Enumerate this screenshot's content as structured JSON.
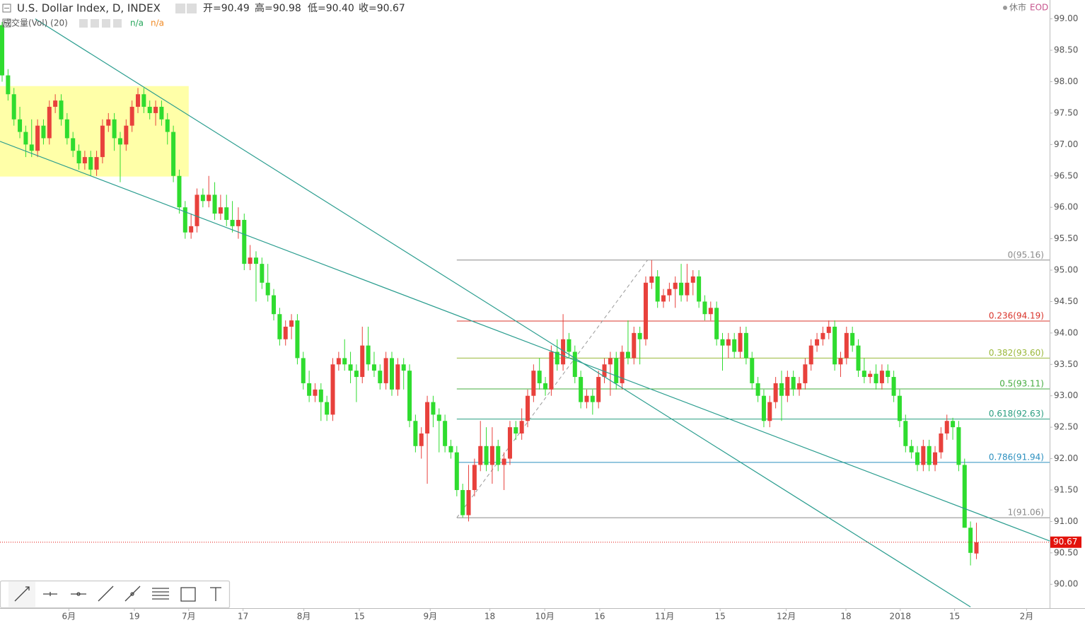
{
  "chart_data": {
    "type": "candlestick",
    "title": "U.S. Dollar Index, D, INDEX",
    "ohlc_texts": [
      "开=90.49",
      "高=90.98",
      "低=90.40",
      "收=90.67"
    ],
    "indicator": "成交量(Vol) (20)",
    "indicator_values": [
      {
        "label": "n/a",
        "color": "#26a65b"
      },
      {
        "label": "n/a",
        "color": "#f08a24"
      }
    ],
    "status": "休市",
    "feed": "EOD",
    "up_color": "#e8413c",
    "down_color": "#2fdc2f",
    "xlim": [
      -0.36,
      177.4
    ],
    "ylim": [
      89.62,
      99.3
    ],
    "yticks": [
      {
        "value": 90,
        "label": "90.00"
      },
      {
        "value": 90.5,
        "label": "90.50"
      },
      {
        "value": 91,
        "label": "91.00"
      },
      {
        "value": 91.5,
        "label": "91.50"
      },
      {
        "value": 92,
        "label": "92.00"
      },
      {
        "value": 92.5,
        "label": "92.50"
      },
      {
        "value": 93,
        "label": "93.00"
      },
      {
        "value": 93.5,
        "label": "93.50"
      },
      {
        "value": 94,
        "label": "94.00"
      },
      {
        "value": 94.5,
        "label": "94.50"
      },
      {
        "value": 95,
        "label": "95.00"
      },
      {
        "value": 95.5,
        "label": "95.50"
      },
      {
        "value": 96,
        "label": "96.00"
      },
      {
        "value": 96.5,
        "label": "96.50"
      },
      {
        "value": 97,
        "label": "97.00"
      },
      {
        "value": 97.5,
        "label": "97.50"
      },
      {
        "value": 98,
        "label": "98.00"
      },
      {
        "value": 98.5,
        "label": "98.50"
      },
      {
        "value": 99,
        "label": "99.00"
      }
    ],
    "xticks": [
      {
        "value": 11.3,
        "label": "6月"
      },
      {
        "value": 22.4,
        "label": "19"
      },
      {
        "value": 31.6,
        "label": "7月"
      },
      {
        "value": 40.8,
        "label": "17"
      },
      {
        "value": 51.1,
        "label": "8月"
      },
      {
        "value": 60.5,
        "label": "15"
      },
      {
        "value": 72.5,
        "label": "9月"
      },
      {
        "value": 82.6,
        "label": "18"
      },
      {
        "value": 91.9,
        "label": "10月"
      },
      {
        "value": 101.2,
        "label": "16"
      },
      {
        "value": 112.2,
        "label": "11月"
      },
      {
        "value": 121.6,
        "label": "15"
      },
      {
        "value": 132.8,
        "label": "12月"
      },
      {
        "value": 142.9,
        "label": "18"
      },
      {
        "value": 152.1,
        "label": "2018"
      },
      {
        "value": 161.3,
        "label": "15"
      },
      {
        "value": 173.5,
        "label": "2月"
      }
    ],
    "candles": [
      [
        98.9,
        98.95,
        98.0,
        98.1
      ],
      [
        98.1,
        98.2,
        97.7,
        97.8
      ],
      [
        97.8,
        97.9,
        97.3,
        97.4
      ],
      [
        97.4,
        97.6,
        97.1,
        97.2
      ],
      [
        97.2,
        97.3,
        96.8,
        97.0
      ],
      [
        97.0,
        97.4,
        96.8,
        96.9
      ],
      [
        96.9,
        97.4,
        96.8,
        97.3
      ],
      [
        97.3,
        97.4,
        97.0,
        97.1
      ],
      [
        97.1,
        97.7,
        97.0,
        97.6
      ],
      [
        97.6,
        97.8,
        97.5,
        97.7
      ],
      [
        97.7,
        97.8,
        97.3,
        97.4
      ],
      [
        97.4,
        97.5,
        97.0,
        97.1
      ],
      [
        97.1,
        97.2,
        96.8,
        96.9
      ],
      [
        96.9,
        97.0,
        96.6,
        96.7
      ],
      [
        96.7,
        96.9,
        96.6,
        96.8
      ],
      [
        96.8,
        96.9,
        96.5,
        96.6
      ],
      [
        96.6,
        96.9,
        96.5,
        96.8
      ],
      [
        96.8,
        97.4,
        96.7,
        97.3
      ],
      [
        97.3,
        97.5,
        97.2,
        97.4
      ],
      [
        97.4,
        97.5,
        96.9,
        97.1
      ],
      [
        97.1,
        97.2,
        96.4,
        97.0
      ],
      [
        97.0,
        97.4,
        96.9,
        97.3
      ],
      [
        97.3,
        97.7,
        97.2,
        97.6
      ],
      [
        97.6,
        97.9,
        97.5,
        97.8
      ],
      [
        97.8,
        97.9,
        97.5,
        97.6
      ],
      [
        97.6,
        97.7,
        97.4,
        97.5
      ],
      [
        97.5,
        97.7,
        97.3,
        97.6
      ],
      [
        97.6,
        97.7,
        97.3,
        97.4
      ],
      [
        97.4,
        97.5,
        97.0,
        97.2
      ],
      [
        97.2,
        97.3,
        96.4,
        96.5
      ],
      [
        96.5,
        96.6,
        95.9,
        96.0
      ],
      [
        96.0,
        96.1,
        95.5,
        95.6
      ],
      [
        95.6,
        95.9,
        95.5,
        95.7
      ],
      [
        95.7,
        96.3,
        95.6,
        96.2
      ],
      [
        96.2,
        96.3,
        96.0,
        96.1
      ],
      [
        96.1,
        96.5,
        96.0,
        96.2
      ],
      [
        96.2,
        96.4,
        95.8,
        95.9
      ],
      [
        95.9,
        96.2,
        95.8,
        96.0
      ],
      [
        96.0,
        96.2,
        95.7,
        95.8
      ],
      [
        95.8,
        96.1,
        95.6,
        95.7
      ],
      [
        95.7,
        96.0,
        95.5,
        95.8
      ],
      [
        95.8,
        95.9,
        95.0,
        95.1
      ],
      [
        95.1,
        95.4,
        95.0,
        95.2
      ],
      [
        95.2,
        95.3,
        94.5,
        95.1
      ],
      [
        95.1,
        95.2,
        94.7,
        94.8
      ],
      [
        94.8,
        95.1,
        94.5,
        94.6
      ],
      [
        94.6,
        94.7,
        94.2,
        94.3
      ],
      [
        94.3,
        94.4,
        93.8,
        93.9
      ],
      [
        93.9,
        94.2,
        93.8,
        94.1
      ],
      [
        94.1,
        94.3,
        93.9,
        94.2
      ],
      [
        94.2,
        94.3,
        93.5,
        93.6
      ],
      [
        93.6,
        93.7,
        93.1,
        93.2
      ],
      [
        93.2,
        93.4,
        92.9,
        93.0
      ],
      [
        93.0,
        93.2,
        92.9,
        93.1
      ],
      [
        93.1,
        93.2,
        92.6,
        92.9
      ],
      [
        92.9,
        93.0,
        92.6,
        92.7
      ],
      [
        92.7,
        93.6,
        92.6,
        93.5
      ],
      [
        93.5,
        93.7,
        93.4,
        93.6
      ],
      [
        93.6,
        93.9,
        93.4,
        93.5
      ],
      [
        93.5,
        93.7,
        93.2,
        93.4
      ],
      [
        93.4,
        93.5,
        92.9,
        93.3
      ],
      [
        93.3,
        94.1,
        93.2,
        93.8
      ],
      [
        93.8,
        94.1,
        93.4,
        93.5
      ],
      [
        93.5,
        93.7,
        93.3,
        93.4
      ],
      [
        93.4,
        93.5,
        93.1,
        93.2
      ],
      [
        93.2,
        93.7,
        93.1,
        93.6
      ],
      [
        93.6,
        93.7,
        93.0,
        93.1
      ],
      [
        93.1,
        93.6,
        93.0,
        93.5
      ],
      [
        93.5,
        93.6,
        93.1,
        93.4
      ],
      [
        93.4,
        93.5,
        92.5,
        92.6
      ],
      [
        92.6,
        92.7,
        92.1,
        92.2
      ],
      [
        92.2,
        92.5,
        92.0,
        92.4
      ],
      [
        92.4,
        93.0,
        91.6,
        92.9
      ],
      [
        92.9,
        93.0,
        92.5,
        92.7
      ],
      [
        92.7,
        92.8,
        92.1,
        92.6
      ],
      [
        92.6,
        92.7,
        92.1,
        92.2
      ],
      [
        92.2,
        92.3,
        92.0,
        92.1
      ],
      [
        92.1,
        92.2,
        91.4,
        91.5
      ],
      [
        91.5,
        91.6,
        91.06,
        91.1
      ],
      [
        91.1,
        91.9,
        91.0,
        91.5
      ],
      [
        91.5,
        92.0,
        91.4,
        91.9
      ],
      [
        91.9,
        92.6,
        91.8,
        92.2
      ],
      [
        92.2,
        92.5,
        91.8,
        91.9
      ],
      [
        91.9,
        92.5,
        91.6,
        92.2
      ],
      [
        92.2,
        92.3,
        91.8,
        91.9
      ],
      [
        91.9,
        92.1,
        91.5,
        92.0
      ],
      [
        92.0,
        92.6,
        91.9,
        92.5
      ],
      [
        92.5,
        92.6,
        92.3,
        92.4
      ],
      [
        92.4,
        92.8,
        92.3,
        92.6
      ],
      [
        92.6,
        93.1,
        92.5,
        93.0
      ],
      [
        93.0,
        93.5,
        92.9,
        93.4
      ],
      [
        93.4,
        93.6,
        93.1,
        93.2
      ],
      [
        93.2,
        93.3,
        93.0,
        93.1
      ],
      [
        93.1,
        93.8,
        93.0,
        93.7
      ],
      [
        93.7,
        93.9,
        93.4,
        93.5
      ],
      [
        93.5,
        94.3,
        93.4,
        93.9
      ],
      [
        93.9,
        94.0,
        93.6,
        93.7
      ],
      [
        93.7,
        93.8,
        93.2,
        93.3
      ],
      [
        93.3,
        93.4,
        92.8,
        92.9
      ],
      [
        92.9,
        93.1,
        92.8,
        93.0
      ],
      [
        93.0,
        93.1,
        92.7,
        92.9
      ],
      [
        92.9,
        93.4,
        92.8,
        93.3
      ],
      [
        93.3,
        93.6,
        93.2,
        93.5
      ],
      [
        93.5,
        93.7,
        93.0,
        93.6
      ],
      [
        93.6,
        93.7,
        93.1,
        93.2
      ],
      [
        93.2,
        93.8,
        93.1,
        93.7
      ],
      [
        93.7,
        94.2,
        93.5,
        93.6
      ],
      [
        93.6,
        94.1,
        93.5,
        94.0
      ],
      [
        94.0,
        94.1,
        93.5,
        93.9
      ],
      [
        93.9,
        94.9,
        93.8,
        94.8
      ],
      [
        94.8,
        95.16,
        94.7,
        94.9
      ],
      [
        94.9,
        95.0,
        94.4,
        94.5
      ],
      [
        94.5,
        94.7,
        94.4,
        94.6
      ],
      [
        94.6,
        94.8,
        94.5,
        94.7
      ],
      [
        94.7,
        94.9,
        94.4,
        94.8
      ],
      [
        94.8,
        95.1,
        94.5,
        94.6
      ],
      [
        94.6,
        95.1,
        94.5,
        94.8
      ],
      [
        94.8,
        95.0,
        94.6,
        94.9
      ],
      [
        94.9,
        95.0,
        94.4,
        94.5
      ],
      [
        94.5,
        94.6,
        94.2,
        94.3
      ],
      [
        94.3,
        94.5,
        94.2,
        94.4
      ],
      [
        94.4,
        94.5,
        93.8,
        93.9
      ],
      [
        93.9,
        94.0,
        93.4,
        93.8
      ],
      [
        93.8,
        94.0,
        93.6,
        93.9
      ],
      [
        93.9,
        94.0,
        93.6,
        93.7
      ],
      [
        93.7,
        94.1,
        93.6,
        94.0
      ],
      [
        94.0,
        94.1,
        93.5,
        93.6
      ],
      [
        93.6,
        93.7,
        93.1,
        93.2
      ],
      [
        93.2,
        93.3,
        92.9,
        93.0
      ],
      [
        93.0,
        93.1,
        92.5,
        92.6
      ],
      [
        92.6,
        93.0,
        92.5,
        92.9
      ],
      [
        92.9,
        93.3,
        92.8,
        93.2
      ],
      [
        93.2,
        93.4,
        92.6,
        93.0
      ],
      [
        93.0,
        93.4,
        92.9,
        93.3
      ],
      [
        93.3,
        93.4,
        93.0,
        93.1
      ],
      [
        93.1,
        93.3,
        93.0,
        93.2
      ],
      [
        93.2,
        93.6,
        93.1,
        93.5
      ],
      [
        93.5,
        93.9,
        93.4,
        93.8
      ],
      [
        93.8,
        94.0,
        93.7,
        93.9
      ],
      [
        93.9,
        94.1,
        93.8,
        94.0
      ],
      [
        94.0,
        94.2,
        93.9,
        94.1
      ],
      [
        94.1,
        94.2,
        93.4,
        93.5
      ],
      [
        93.5,
        93.7,
        93.3,
        93.6
      ],
      [
        93.6,
        94.1,
        93.5,
        94.0
      ],
      [
        94.0,
        94.1,
        93.7,
        93.8
      ],
      [
        93.8,
        93.9,
        93.3,
        93.4
      ],
      [
        93.4,
        93.6,
        93.2,
        93.3
      ],
      [
        93.3,
        93.4,
        93.2,
        93.35
      ],
      [
        93.35,
        93.5,
        93.1,
        93.2
      ],
      [
        93.2,
        93.5,
        93.1,
        93.4
      ],
      [
        93.4,
        93.5,
        93.2,
        93.3
      ],
      [
        93.3,
        93.4,
        92.9,
        93.0
      ],
      [
        93.0,
        93.1,
        92.5,
        92.6
      ],
      [
        92.6,
        92.7,
        92.1,
        92.2
      ],
      [
        92.2,
        92.3,
        92.0,
        92.1
      ],
      [
        92.1,
        92.2,
        91.8,
        91.9
      ],
      [
        91.9,
        92.3,
        91.8,
        92.2
      ],
      [
        92.2,
        92.3,
        91.8,
        91.9
      ],
      [
        91.9,
        92.2,
        91.8,
        92.1
      ],
      [
        92.1,
        92.5,
        92.0,
        92.4
      ],
      [
        92.4,
        92.7,
        92.3,
        92.6
      ],
      [
        92.6,
        92.65,
        92.3,
        92.5
      ],
      [
        92.5,
        92.6,
        91.8,
        91.9
      ],
      [
        91.9,
        92.0,
        90.9,
        90.9
      ],
      [
        90.9,
        91.0,
        90.3,
        90.5
      ],
      [
        90.49,
        90.98,
        90.4,
        90.67
      ]
    ],
    "fib_levels": [
      {
        "label": "0(95.16)",
        "value": 95.16,
        "color": "#8a8a8a"
      },
      {
        "label": "0.236(94.19)",
        "value": 94.19,
        "color": "#d9342b"
      },
      {
        "label": "0.382(93.60)",
        "value": 93.6,
        "color": "#9ab83a"
      },
      {
        "label": "0.5(93.11)",
        "value": 93.11,
        "color": "#45ac3f"
      },
      {
        "label": "0.618(92.63)",
        "value": 92.63,
        "color": "#2a9e80"
      },
      {
        "label": "0.786(91.94)",
        "value": 91.94,
        "color": "#2b8fbf"
      },
      {
        "label": "1(91.06)",
        "value": 91.06,
        "color": "#8a8a8a"
      }
    ],
    "fib_start": 77,
    "last_price": {
      "value": 90.67,
      "label": "90.67",
      "color": "#e3120b"
    },
    "trendlines": [
      [
        [
          5.6,
          99.0
        ],
        [
          164,
          89.64
        ]
      ],
      [
        [
          -0.36,
          97.05
        ],
        [
          177.4,
          90.69
        ]
      ]
    ],
    "trend_color": "#2a9d8f",
    "anchor_line": [
      [
        77,
        91.06
      ],
      [
        109.3,
        95.16
      ]
    ],
    "highlight_box": {
      "x": [
        -0.36,
        31.6
      ],
      "y": [
        96.49,
        97.93
      ],
      "color": "#ffff99"
    }
  }
}
